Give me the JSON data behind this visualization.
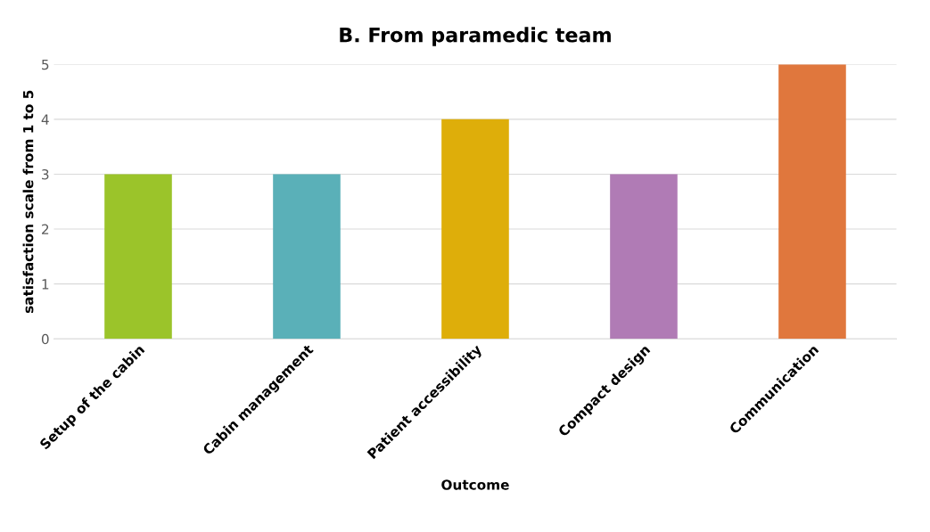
{
  "chart_data": {
    "type": "bar",
    "title": "B. From paramedic team",
    "xlabel": "Outcome",
    "ylabel": "satisfaction scale from 1 to 5",
    "categories": [
      "Setup of the cabin",
      "Cabin management",
      "Patient accessibility",
      "Compact design",
      "Communication"
    ],
    "values": [
      3,
      3,
      4,
      3,
      5
    ],
    "colors": [
      "#9bc42a",
      "#5ab0b8",
      "#deae0a",
      "#b07bb5",
      "#e0773d"
    ],
    "ylim": [
      0,
      5
    ],
    "yticks": [
      0,
      1,
      2,
      3,
      4,
      5
    ],
    "grid": "y",
    "legend": false
  }
}
